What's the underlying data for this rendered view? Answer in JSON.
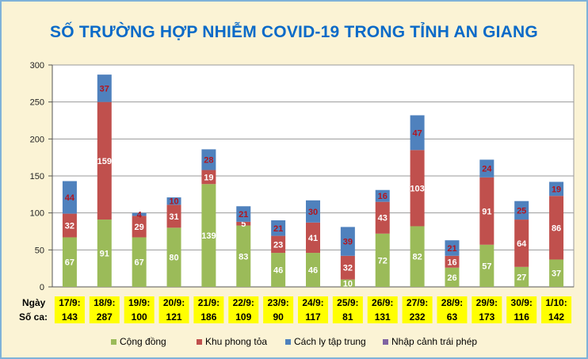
{
  "chart_data": {
    "type": "bar",
    "title": "SỐ TRƯỜNG HỢP NHIỄM COVID-19 TRONG TỈNH AN GIANG",
    "stacked": true,
    "ylim": [
      0,
      300
    ],
    "yticks": [
      0,
      50,
      100,
      150,
      200,
      250,
      300
    ],
    "grid": true,
    "legend_placement": "bottom",
    "categories": [
      "17/9:",
      "18/9:",
      "19/9:",
      "20/9:",
      "21/9:",
      "22/9:",
      "23/9:",
      "24/9:",
      "25/9:",
      "26/9:",
      "27/9:",
      "28/9:",
      "29/9:",
      "30/9:",
      "1/10:"
    ],
    "totals": [
      "143",
      "287",
      "100",
      "121",
      "186",
      "109",
      "90",
      "117",
      "81",
      "131",
      "232",
      "63",
      "173",
      "116",
      "142"
    ],
    "row_labels": {
      "date": "Ngày",
      "count": "Số ca:"
    },
    "series": [
      {
        "name": "Cộng đồng",
        "color": "#9bbb59",
        "label_color": "#ffffff",
        "values": [
          67,
          91,
          67,
          80,
          139,
          83,
          46,
          46,
          10,
          72,
          82,
          26,
          57,
          27,
          37
        ]
      },
      {
        "name": "Khu phong tỏa",
        "color": "#c0504d",
        "label_color": "#ffffff",
        "values": [
          32,
          159,
          29,
          31,
          19,
          5,
          23,
          41,
          32,
          43,
          103,
          16,
          91,
          64,
          86
        ]
      },
      {
        "name": "Cách ly tập trung",
        "color": "#4f81bd",
        "label_color": "#b3151d",
        "values": [
          44,
          37,
          4,
          10,
          28,
          21,
          21,
          30,
          39,
          16,
          47,
          21,
          24,
          25,
          19
        ]
      },
      {
        "name": "Nhập cảnh trái phép",
        "color": "#8064a2",
        "label_color": "#ffffff",
        "values": [
          0,
          0,
          0,
          0,
          0,
          0,
          0,
          0,
          0,
          0,
          0,
          0,
          0,
          0,
          0
        ]
      }
    ],
    "colors": {
      "background": "#fbf3d5",
      "title": "#0a6ac8",
      "highlight": "#ffff00"
    }
  }
}
